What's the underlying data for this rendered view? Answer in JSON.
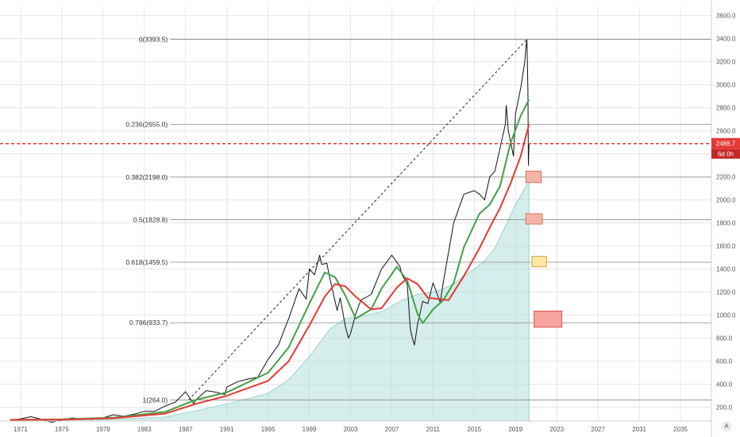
{
  "chart_data": {
    "type": "line",
    "title": "",
    "xlim": [
      1969,
      2038
    ],
    "ylim": [
      80,
      3680
    ],
    "x_ticks": [
      1971,
      1975,
      1979,
      1983,
      1987,
      1991,
      1995,
      1999,
      2003,
      2007,
      2011,
      2015,
      2019,
      2023,
      2027,
      2031,
      2035
    ],
    "y_ticks": [
      200,
      400,
      600,
      800,
      1000,
      1200,
      1400,
      1600,
      1800,
      2000,
      2200,
      2400,
      2600,
      2800,
      3000,
      3200,
      3400,
      3600
    ],
    "x_tick_labels": [
      "1971",
      "1975",
      "1979",
      "1983",
      "1987",
      "1991",
      "1995",
      "1999",
      "2003",
      "2007",
      "2011",
      "2015",
      "2019",
      "2023",
      "2027",
      "2031",
      "2035"
    ],
    "y_tick_labels": [
      "200.0",
      "400.0",
      "600.0",
      "800.0",
      "1000.0",
      "1200.0",
      "1400.0",
      "1600.0",
      "1800.0",
      "2000.0",
      "2200.0",
      "2400.0",
      "2600.0",
      "2800.0",
      "3000.0",
      "3200.0",
      "3400.0",
      "3600.0"
    ],
    "current_price": 2488.7,
    "price_label": "2488.7",
    "countdown_label": "6d 0h",
    "series": [
      {
        "color": "#111111",
        "x": [
          1970,
          1971,
          1972,
          1973,
          1974,
          1975,
          1976,
          1977,
          1978,
          1979,
          1980,
          1981,
          1982,
          1983,
          1984,
          1985,
          1986,
          1987,
          1987.8,
          1988,
          1989,
          1990,
          1990.8,
          1991,
          1992,
          1993,
          1994,
          1995,
          1996,
          1997,
          1998,
          1998.7,
          1999,
          1999.5,
          2000,
          2000.2,
          2000.7,
          2001,
          2001.7,
          2002,
          2002.5,
          2002.8,
          2003,
          2003.5,
          2004,
          2005,
          2006,
          2007,
          2007.8,
          2008,
          2008.5,
          2008.8,
          2009,
          2009.2,
          2009.5,
          2010,
          2010.5,
          2011,
          2011.7,
          2012,
          2013,
          2014,
          2015,
          2015.5,
          2016,
          2016.5,
          2017,
          2018,
          2018.1,
          2018.3,
          2018.8,
          2019,
          2019.5,
          2019.9,
          2020,
          2020.1,
          2020.2,
          2020.25,
          2020.3
        ],
        "values": [
          85,
          100,
          118,
          97,
          70,
          90,
          107,
          98,
          96,
          108,
          135,
          122,
          140,
          165,
          165,
          210,
          245,
          335,
          230,
          265,
          345,
          330,
          310,
          375,
          420,
          445,
          460,
          615,
          740,
          970,
          1230,
          1140,
          1400,
          1350,
          1520,
          1440,
          1450,
          1320,
          1040,
          1150,
          900,
          800,
          840,
          1010,
          1130,
          1180,
          1400,
          1520,
          1420,
          1350,
          1270,
          880,
          800,
          740,
          920,
          1120,
          1100,
          1280,
          1110,
          1290,
          1800,
          2050,
          2080,
          2050,
          2000,
          2200,
          2250,
          2650,
          2820,
          2600,
          2380,
          2750,
          2970,
          3200,
          3320,
          3390,
          2950,
          2300,
          2488.7
        ]
      },
      {
        "color": "#43a047",
        "x": [
          1970,
          1975,
          1980,
          1985,
          1988,
          1991,
          1995,
          1997,
          1999,
          2000.5,
          2001.5,
          2002.5,
          2003.5,
          2005,
          2006,
          2007.5,
          2008.5,
          2009.5,
          2010,
          2011,
          2012,
          2013,
          2014,
          2015.5,
          2016.5,
          2017.5,
          2018.5,
          2019.5,
          2020.3
        ],
        "values": [
          90,
          95,
          110,
          160,
          265,
          330,
          500,
          720,
          1100,
          1370,
          1330,
          1170,
          970,
          1050,
          1230,
          1420,
          1300,
          1010,
          930,
          1050,
          1130,
          1280,
          1590,
          1880,
          1960,
          2120,
          2490,
          2730,
          2870
        ]
      },
      {
        "color": "#e53935",
        "x": [
          1970,
          1975,
          1980,
          1985,
          1988,
          1991,
          1995,
          1997,
          1999,
          2000.5,
          2001.5,
          2002.5,
          2003.5,
          2005,
          2006,
          2007.5,
          2008.5,
          2009.5,
          2010.5,
          2011.5,
          2012.5,
          2013,
          2014,
          2015.5,
          2016.5,
          2017.5,
          2018.5,
          2019.5,
          2020.3
        ],
        "values": [
          92,
          93,
          105,
          145,
          230,
          300,
          430,
          600,
          910,
          1160,
          1270,
          1250,
          1160,
          1050,
          1060,
          1240,
          1320,
          1270,
          1150,
          1140,
          1130,
          1200,
          1340,
          1580,
          1760,
          1930,
          2140,
          2380,
          2655
        ]
      },
      {
        "color": "#b2dfdb",
        "x": [
          1970,
          1975,
          1980,
          1985,
          1988,
          1991,
          1995,
          1997,
          1999,
          2001,
          2002.5,
          2004,
          2006,
          2008,
          2009.5,
          2011,
          2012,
          2013,
          2014,
          2015,
          2016,
          2017,
          2018,
          2019,
          2020.3
        ],
        "values": [
          86,
          88,
          95,
          115,
          170,
          230,
          320,
          440,
          640,
          880,
          970,
          990,
          1030,
          1130,
          1180,
          1200,
          1230,
          1270,
          1340,
          1400,
          1470,
          1580,
          1770,
          1960,
          2160
        ]
      }
    ],
    "fib_levels": [
      {
        "label": "0(3393.5)",
        "value": 3393.5
      },
      {
        "label": "0.236(2655.0)",
        "value": 2655.0
      },
      {
        "label": "0.382(2198.0)",
        "value": 2198.0
      },
      {
        "label": "0.5(1828.8)",
        "value": 1828.8
      },
      {
        "label": "0.618(1459.5)",
        "value": 1459.5
      },
      {
        "label": "0.786(933.7)",
        "value": 933.7
      },
      {
        "label": "1(264.0)",
        "value": 264.0
      }
    ],
    "trendline": {
      "from": [
        1987.3,
        264.0
      ],
      "to": [
        2020.1,
        3393.5
      ]
    },
    "zones": [
      {
        "x": [
          2020.0,
          2021.5
        ],
        "y": [
          2150,
          2250
        ],
        "fill": "#f4b5a6",
        "stroke": "#d9735e"
      },
      {
        "x": [
          2020.0,
          2021.6
        ],
        "y": [
          1790,
          1880
        ],
        "fill": "#f4b5a6",
        "stroke": "#d9735e"
      },
      {
        "x": [
          2020.6,
          2022.0
        ],
        "y": [
          1420,
          1510
        ],
        "fill": "#fbe7a1",
        "stroke": "#c9a43a"
      },
      {
        "x": [
          2020.8,
          2023.5
        ],
        "y": [
          895,
          1035
        ],
        "fill": "#f7a3a0",
        "stroke": "#d9534f"
      }
    ],
    "colors": {
      "fib_line": "#8a8a8a",
      "price_line": "#e53935",
      "trendline": "#222222",
      "grid": "#e6e6e6"
    }
  },
  "axis_badge": "A"
}
